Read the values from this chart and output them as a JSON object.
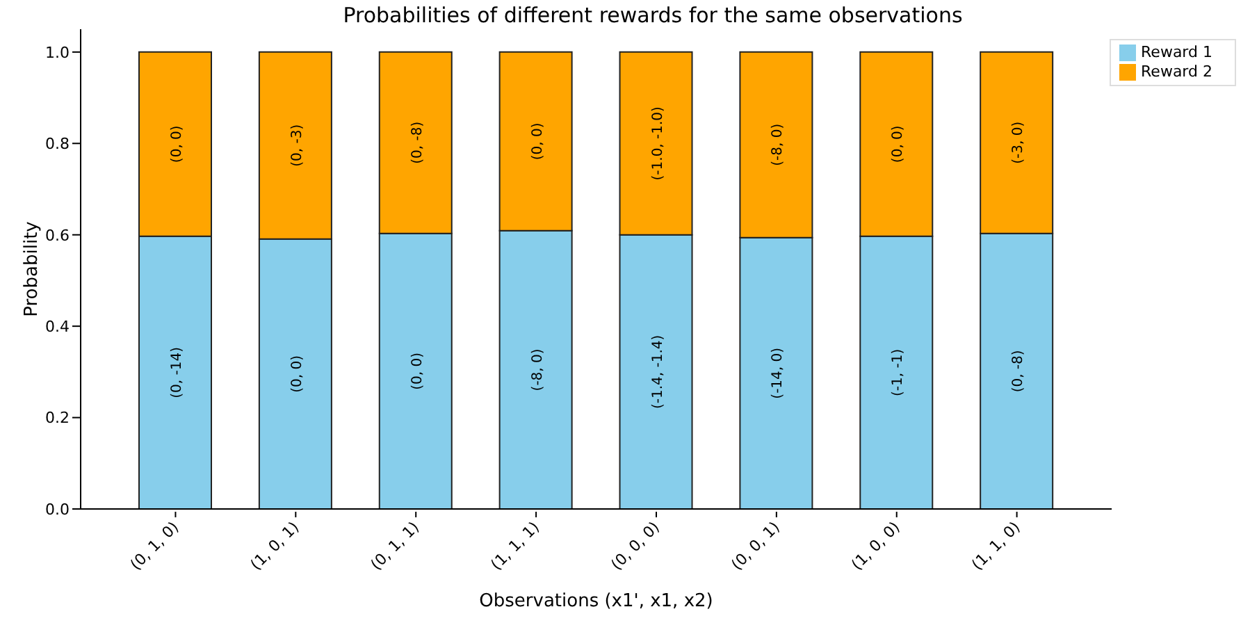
{
  "chart_data": {
    "type": "bar",
    "stacked": true,
    "title": "Probabilities of different rewards for the same observations",
    "xlabel": "Observations (x1', x1, x2)",
    "ylabel": "Probability",
    "categories": [
      "(0, 1, 0)",
      "(1, 0, 1)",
      "(0, 1, 1)",
      "(1, 1, 1)",
      "(0, 0, 0)",
      "(0, 0, 1)",
      "(1, 0, 0)",
      "(1, 1, 0)"
    ],
    "series": [
      {
        "name": "Reward 1",
        "color": "#87ceeb",
        "values": [
          0.597,
          0.591,
          0.603,
          0.609,
          0.6,
          0.594,
          0.597,
          0.603
        ],
        "value_labels": [
          "(0, -14)",
          "(0, 0)",
          "(0, 0)",
          "(-8, 0)",
          "(-1.4, -1.4)",
          "(-14, 0)",
          "(-1, -1)",
          "(0, -8)"
        ]
      },
      {
        "name": "Reward 2",
        "color": "#ffa500",
        "values": [
          0.403,
          0.409,
          0.397,
          0.391,
          0.4,
          0.406,
          0.403,
          0.397
        ],
        "value_labels": [
          "(0, 0)",
          "(0, -3)",
          "(0, -8)",
          "(0, 0)",
          "(-1.0, -1.0)",
          "(-8, 0)",
          "(0, 0)",
          "(-3, 0)"
        ]
      }
    ],
    "ylim": [
      0,
      1.05
    ],
    "yticks": [
      {
        "value": 0,
        "label": "0.0"
      },
      {
        "value": 0.2,
        "label": "0.2"
      },
      {
        "value": 0.4,
        "label": "0.4"
      },
      {
        "value": 0.6,
        "label": "0.6"
      },
      {
        "value": 0.8,
        "label": "0.8"
      },
      {
        "value": 1,
        "label": "1.0"
      }
    ],
    "legend": "top right",
    "grid": false
  }
}
